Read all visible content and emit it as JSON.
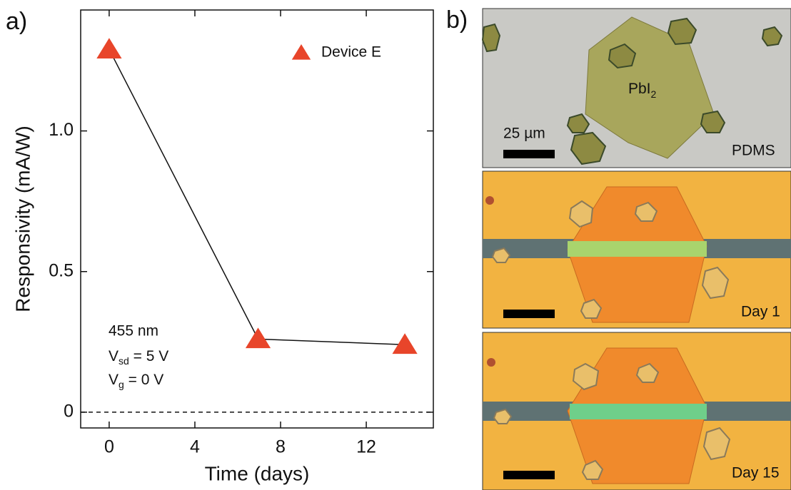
{
  "chart_data": {
    "type": "line",
    "panel_label": "a)",
    "x_label": "Time (days)",
    "y_label": "Responsivity (mA/W)",
    "x": [
      0,
      6.95,
      13.8
    ],
    "series": [
      {
        "name": "Device E",
        "color": "#e8452a",
        "values": [
          1.29,
          0.26,
          0.24
        ]
      }
    ],
    "xlim": [
      -1.33,
      15.13
    ],
    "ylim": [
      -0.056,
      1.43
    ],
    "xticks": [
      0,
      4,
      8,
      12
    ],
    "yticks": [
      0,
      0.5,
      {
        "value": 1,
        "label": "1.0"
      }
    ],
    "reference_line": 0,
    "legend": "upper right",
    "annotations": {
      "wavelength": "455 nm",
      "vsd": [
        "V",
        "sd",
        " = 5 V"
      ],
      "vg": [
        "V",
        "g",
        " = 0 V"
      ]
    }
  },
  "images": {
    "panel_label": "b)",
    "material": [
      "PbI",
      "2"
    ],
    "scale_bar": "25 µm",
    "substrate": "PDMS",
    "day1": "Day 1",
    "day15": "Day 15"
  }
}
